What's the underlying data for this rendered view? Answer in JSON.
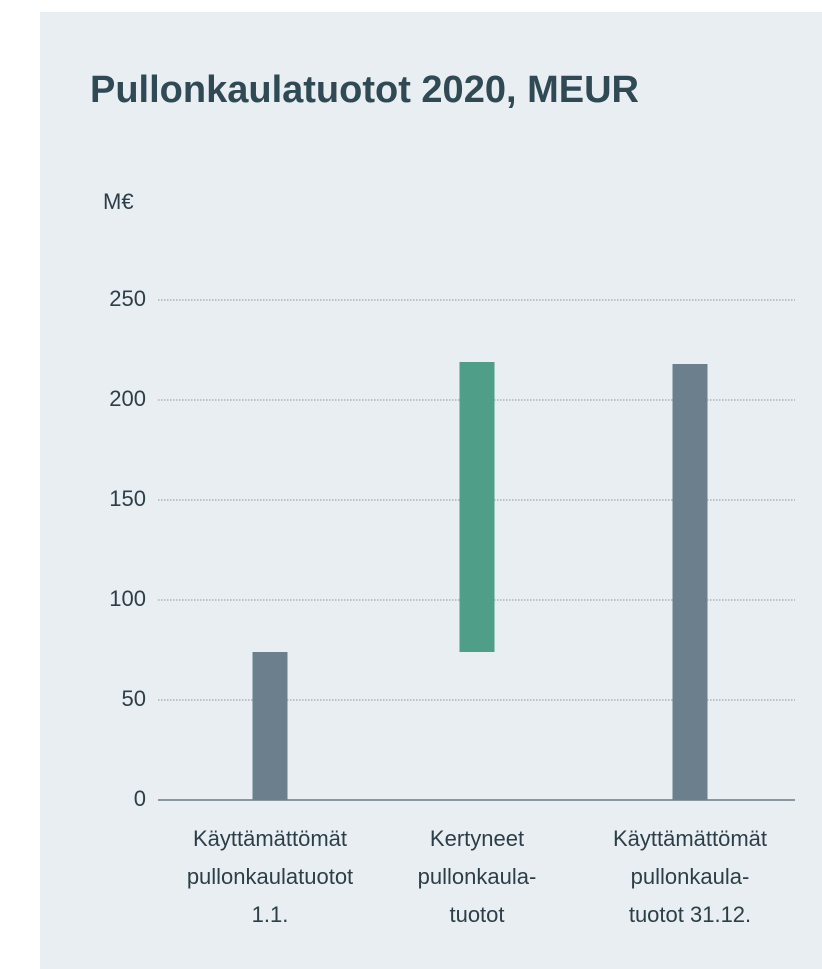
{
  "chart_data": {
    "type": "waterfall",
    "title": "Pullonkaulatuotot 2020, MEUR",
    "y_label": "M€",
    "categories": [
      [
        "Käyttämättömät",
        "pullonkaulatuotot",
        "1.1."
      ],
      [
        "Kertyneet",
        "pullonkaula-",
        "tuotot"
      ],
      [
        "Käyttämättömät",
        "pullonkaula-",
        "tuotot 31.12."
      ]
    ],
    "values": [
      74,
      145,
      218
    ],
    "totals": [
      true,
      false,
      true
    ],
    "colors": [
      "#6b808c",
      "#4f9e87",
      "#6b808c"
    ],
    "ylim": [
      0,
      250
    ],
    "yticks": [
      0,
      50,
      100,
      150,
      200,
      250
    ],
    "grid": true
  }
}
